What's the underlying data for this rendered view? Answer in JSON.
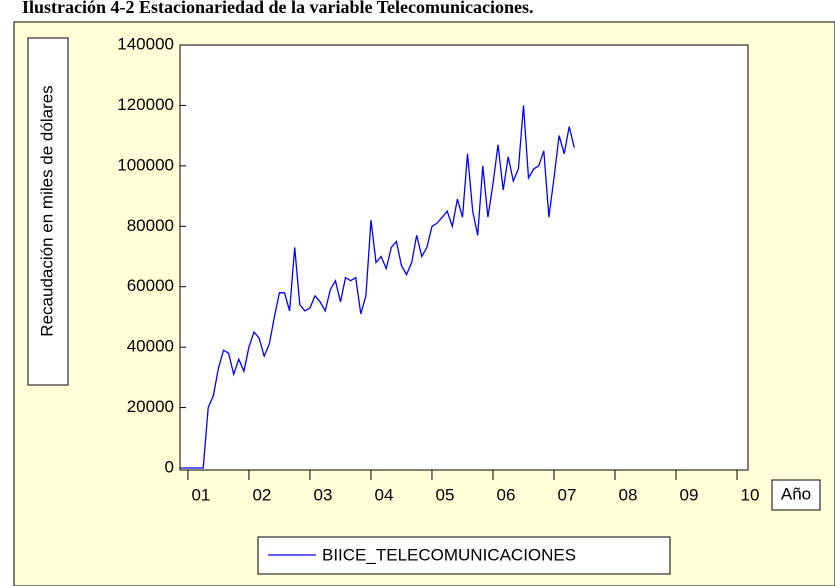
{
  "chart_data": {
    "type": "line",
    "title": "Ilustración 4-2 Estacionariedad de la variable Telecomunicaciones.",
    "ylabel": "Recaudación en miles de dólares",
    "xlabel": "Año",
    "x": [
      2000.917,
      2001.0,
      2001.083,
      2001.167,
      2001.25,
      2001.333,
      2001.417,
      2001.5,
      2001.583,
      2001.667,
      2001.75,
      2001.833,
      2001.917,
      2002.0,
      2002.083,
      2002.167,
      2002.25,
      2002.333,
      2002.417,
      2002.5,
      2002.583,
      2002.667,
      2002.75,
      2002.833,
      2002.917,
      2003.0,
      2003.083,
      2003.167,
      2003.25,
      2003.333,
      2003.417,
      2003.5,
      2003.583,
      2003.667,
      2003.75,
      2003.833,
      2003.917,
      2004.0,
      2004.083,
      2004.167,
      2004.25,
      2004.333,
      2004.417,
      2004.5,
      2004.583,
      2004.667,
      2004.75,
      2004.833,
      2004.917,
      2005.0,
      2005.083,
      2005.167,
      2005.25,
      2005.333,
      2005.417,
      2005.5,
      2005.583,
      2005.667,
      2005.75,
      2005.833,
      2005.917,
      2006.0,
      2006.083,
      2006.167,
      2006.25,
      2006.333,
      2006.417,
      2006.5,
      2006.583,
      2006.667,
      2006.75,
      2006.833,
      2006.917,
      2007.0,
      2007.083,
      2007.167,
      2007.25,
      2007.333
    ],
    "series": [
      {
        "name": "BIICE_TELECOMUNICACIONES",
        "color": "#0000ff",
        "values": [
          0,
          0,
          0,
          0,
          0,
          20000,
          24000,
          33000,
          39000,
          38000,
          31000,
          36000,
          32000,
          40000,
          45000,
          43000,
          37000,
          41000,
          50000,
          58000,
          58000,
          52000,
          73000,
          54000,
          52000,
          53000,
          57000,
          55000,
          52000,
          59000,
          62000,
          55000,
          63000,
          62000,
          63000,
          51000,
          57000,
          82000,
          68000,
          70000,
          66000,
          73000,
          75000,
          67000,
          64000,
          68000,
          77000,
          70000,
          73000,
          80000,
          81000,
          83000,
          85000,
          80000,
          89000,
          83000,
          104000,
          85000,
          77000,
          100000,
          83000,
          94000,
          107000,
          92000,
          103000,
          95000,
          99000,
          120000,
          96000,
          99000,
          100000,
          105000,
          83000,
          96000,
          110000,
          104000,
          113000,
          106000
        ]
      }
    ],
    "xlim": [
      2000.87,
      2010.18
    ],
    "xticks": [
      {
        "value": 2001,
        "label": "01"
      },
      {
        "value": 2002,
        "label": "02"
      },
      {
        "value": 2003,
        "label": "03"
      },
      {
        "value": 2004,
        "label": "04"
      },
      {
        "value": 2005,
        "label": "05"
      },
      {
        "value": 2006,
        "label": "06"
      },
      {
        "value": 2007,
        "label": "07"
      },
      {
        "value": 2008,
        "label": "08"
      },
      {
        "value": 2009,
        "label": "09"
      },
      {
        "value": 2010,
        "label": "10"
      }
    ],
    "ylim": [
      0,
      140000
    ],
    "yticks": [
      0,
      20000,
      40000,
      60000,
      80000,
      100000,
      120000,
      140000
    ]
  }
}
